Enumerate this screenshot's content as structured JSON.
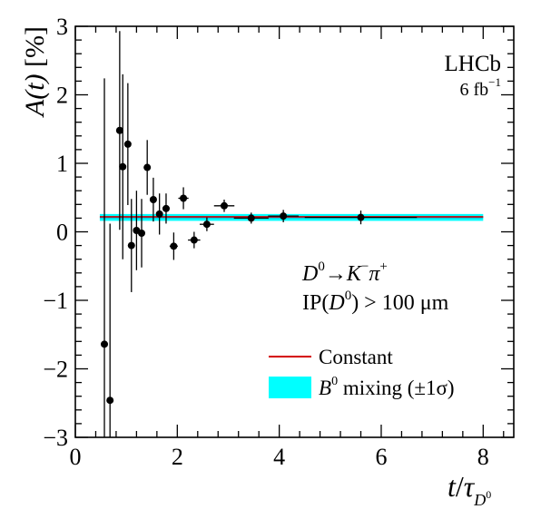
{
  "chart_data": {
    "type": "scatter",
    "title": "",
    "xlabel_main": "t",
    "xlabel_sep": "/",
    "xlabel_tau": "τ",
    "xlabel_sub": "D",
    "xlabel_subsup": "0",
    "ylabel_main": "A(t)",
    "ylabel_unit": "[%]",
    "xlim": [
      0,
      8.6
    ],
    "ylim": [
      -3,
      3
    ],
    "xticks": [
      0,
      2,
      4,
      6,
      8
    ],
    "yticks": [
      -3,
      -2,
      -1,
      0,
      1,
      2,
      3
    ],
    "grid": false,
    "experiment": "LHCb",
    "luminosity_value": "6 fb",
    "luminosity_exp": "−1",
    "annotation_decay": {
      "d": "D",
      "d_sup": "0",
      "arrow": "→",
      "k": "K",
      "k_sup": "−",
      "pi": "π",
      "pi_sup": "+"
    },
    "annotation_cut": {
      "prefix": "IP(",
      "d": "D",
      "d_sup": "0",
      "suffix": ") > 100 μm"
    },
    "legend_position": "bottom-right",
    "legend": [
      {
        "key": "constant",
        "label": "Constant",
        "color": "#d40000"
      },
      {
        "key": "mixing",
        "label_main": "B",
        "label_sup": "0",
        "label_rest": " mixing (±1σ)",
        "color": "#00ffff"
      }
    ],
    "constant": {
      "value": 0.22
    },
    "mixing_band": {
      "x": [
        0.48,
        8.0
      ],
      "center": 0.21,
      "half_width": 0.05
    },
    "points": [
      {
        "x": 0.57,
        "y": -1.64,
        "yerr": 3.88,
        "xerr": 0.03
      },
      {
        "x": 0.68,
        "y": -2.46,
        "yerr": 2.58,
        "xerr": 0.03
      },
      {
        "x": 0.87,
        "y": 1.48,
        "yerr": 1.45,
        "xerr": 0.03
      },
      {
        "x": 0.93,
        "y": 0.95,
        "yerr": 1.35,
        "xerr": 0.03
      },
      {
        "x": 1.03,
        "y": 1.28,
        "yerr": 0.89,
        "xerr": 0.03
      },
      {
        "x": 1.1,
        "y": -0.2,
        "yerr": 0.68,
        "xerr": 0.03
      },
      {
        "x": 1.2,
        "y": 0.02,
        "yerr": 0.58,
        "xerr": 0.04
      },
      {
        "x": 1.3,
        "y": -0.02,
        "yerr": 0.5,
        "xerr": 0.05
      },
      {
        "x": 1.41,
        "y": 0.94,
        "yerr": 0.4,
        "xerr": 0.05
      },
      {
        "x": 1.53,
        "y": 0.47,
        "yerr": 0.32,
        "xerr": 0.06
      },
      {
        "x": 1.65,
        "y": 0.26,
        "yerr": 0.3,
        "xerr": 0.06
      },
      {
        "x": 1.78,
        "y": 0.34,
        "yerr": 0.22,
        "xerr": 0.07
      },
      {
        "x": 1.93,
        "y": -0.21,
        "yerr": 0.2,
        "xerr": 0.08
      },
      {
        "x": 2.12,
        "y": 0.49,
        "yerr": 0.16,
        "xerr": 0.1
      },
      {
        "x": 2.33,
        "y": -0.12,
        "yerr": 0.12,
        "xerr": 0.12
      },
      {
        "x": 2.58,
        "y": 0.11,
        "yerr": 0.1,
        "xerr": 0.14
      },
      {
        "x": 2.92,
        "y": 0.38,
        "yerr": 0.09,
        "xerr": 0.2
      },
      {
        "x": 3.45,
        "y": 0.2,
        "yerr": 0.08,
        "xerr": 0.34
      },
      {
        "x": 4.08,
        "y": 0.23,
        "yerr": 0.09,
        "xerr": 0.3
      },
      {
        "x": 5.6,
        "y": 0.21,
        "yerr": 0.1,
        "xerr": 1.1
      }
    ]
  }
}
